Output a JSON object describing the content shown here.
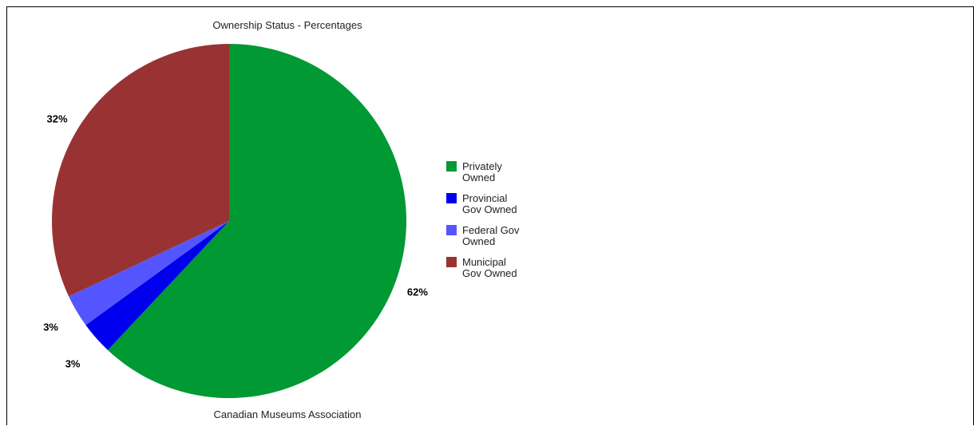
{
  "chart_data": {
    "type": "pie",
    "title": "Ownership Status - Percentages",
    "footer": "Canadian Museums Association",
    "slices": [
      {
        "label": "Privately Owned",
        "label_lines": [
          "Privately",
          "Owned"
        ],
        "value": 62,
        "display": "62%",
        "color": "#009933"
      },
      {
        "label": "Provincial Gov Owned",
        "label_lines": [
          "Provincial",
          "Gov Owned"
        ],
        "value": 3,
        "display": "3%",
        "color": "#0000ee"
      },
      {
        "label": "Federal Gov Owned",
        "label_lines": [
          "Federal Gov",
          "Owned"
        ],
        "value": 3,
        "display": "3%",
        "color": "#5555ff"
      },
      {
        "label": "Municipal Gov Owned",
        "label_lines": [
          "Municipal",
          "Gov Owned"
        ],
        "value": 32,
        "display": "32%",
        "color": "#993333"
      }
    ],
    "legend_position": "right"
  }
}
